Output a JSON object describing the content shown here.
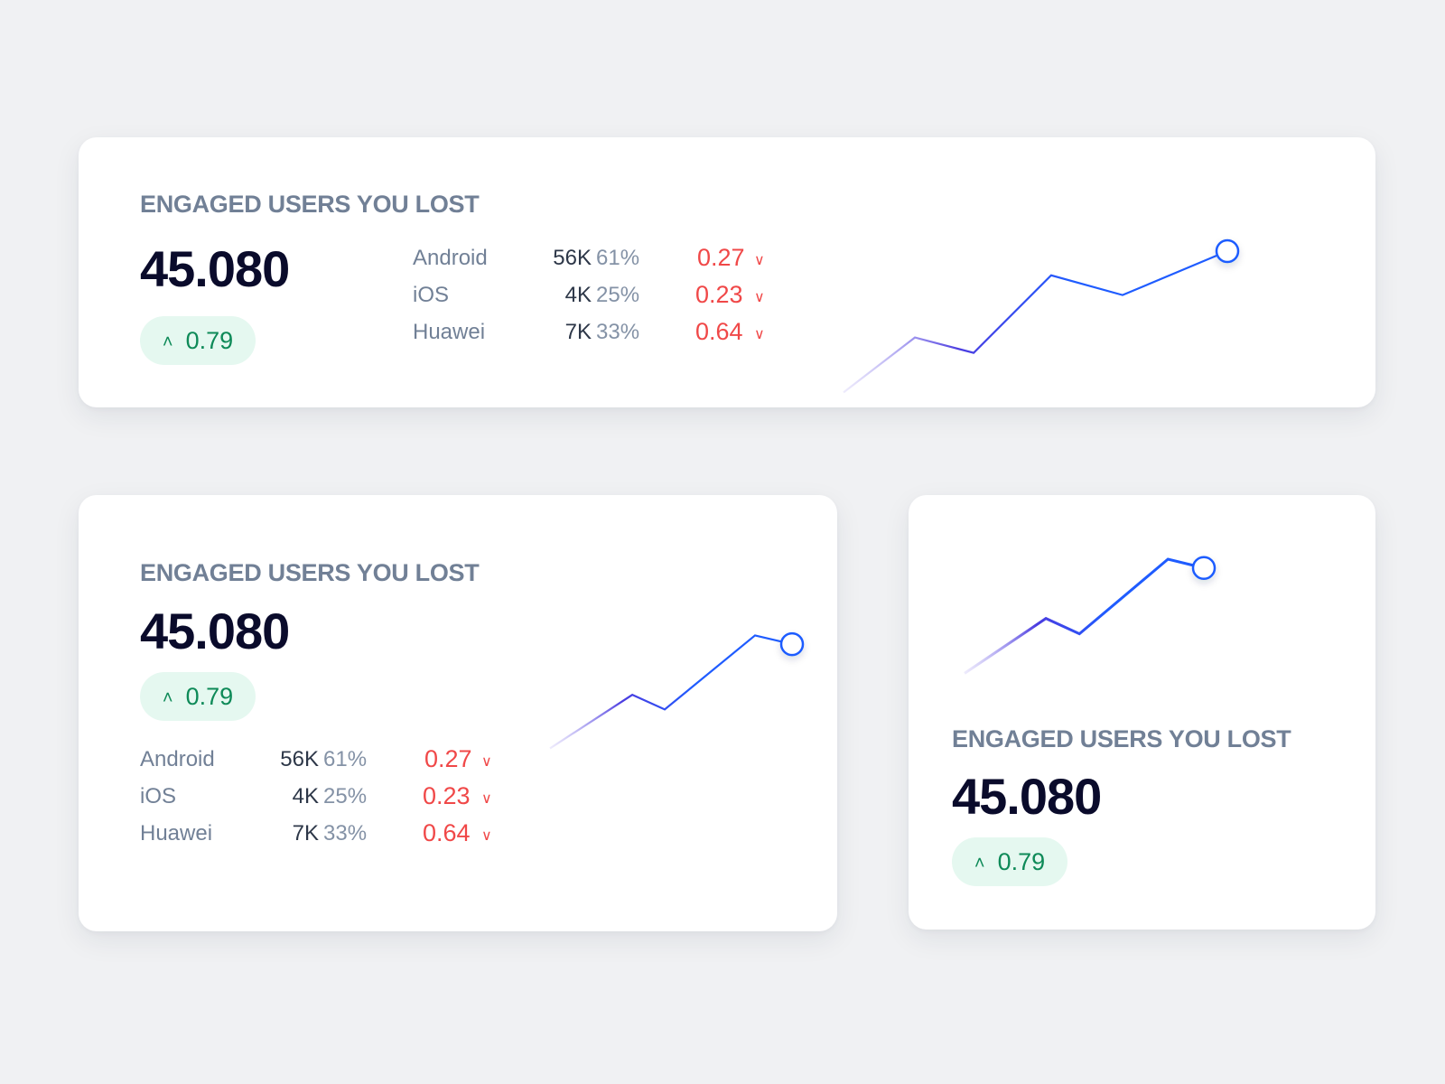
{
  "cards": [
    {
      "title": "ENGAGED USERS YOU LOST",
      "value": "45.080",
      "change": "0.79",
      "change_icon": "chevron-up-icon",
      "rows": [
        {
          "label": "Android",
          "count": "56K",
          "percent": "61%",
          "change": "0.27",
          "icon": "chevron-down-icon"
        },
        {
          "label": "iOS",
          "count": "4K",
          "percent": "25%",
          "change": "0.23",
          "icon": "chevron-down-icon"
        },
        {
          "label": "Huawei",
          "count": "7K",
          "percent": "33%",
          "change": "0.64",
          "icon": "chevron-down-icon"
        }
      ]
    },
    {
      "title": "ENGAGED USERS YOU LOST",
      "value": "45.080",
      "change": "0.79",
      "change_icon": "chevron-up-icon",
      "rows": [
        {
          "label": "Android",
          "count": "56K",
          "percent": "61%",
          "change": "0.27",
          "icon": "chevron-down-icon"
        },
        {
          "label": "iOS",
          "count": "4K",
          "percent": "25%",
          "change": "0.23",
          "icon": "chevron-down-icon"
        },
        {
          "label": "Huawei",
          "count": "7K",
          "percent": "33%",
          "change": "0.64",
          "icon": "chevron-down-icon"
        }
      ]
    },
    {
      "title": "ENGAGED USERS YOU LOST",
      "value": "45.080",
      "change": "0.79",
      "change_icon": "chevron-up-icon"
    }
  ],
  "colors": {
    "positive": "#0e8a58",
    "positive_bg": "#e5f8f0",
    "negative": "#f04848",
    "line_start": "#a99cf0",
    "line_mid": "#4b3ce0",
    "line_end": "#1f5cff"
  },
  "chart_data": [
    {
      "type": "line",
      "grid": true,
      "gridlines": 3,
      "ylim": [
        0,
        3
      ],
      "x": [
        0,
        18.6,
        33.9,
        54.1,
        72.7,
        100
      ],
      "y": [
        0.44,
        1.19,
        0.98,
        2.04,
        1.77,
        2.37
      ],
      "last_point_marker": true
    },
    {
      "type": "line",
      "grid": true,
      "gridlines": 5,
      "ylim": [
        0,
        5
      ],
      "x": [
        0,
        34,
        47.4,
        84.7,
        100
      ],
      "y": [
        2.47,
        3.2,
        3.0,
        4.01,
        3.89
      ],
      "last_point_marker": true
    },
    {
      "type": "line",
      "grid": true,
      "gridlines": 3,
      "ylim": [
        0,
        3
      ],
      "x": [
        0,
        34,
        48,
        85,
        100
      ],
      "y": [
        1.02,
        1.77,
        1.56,
        2.58,
        2.46
      ],
      "last_point_marker": true
    }
  ]
}
